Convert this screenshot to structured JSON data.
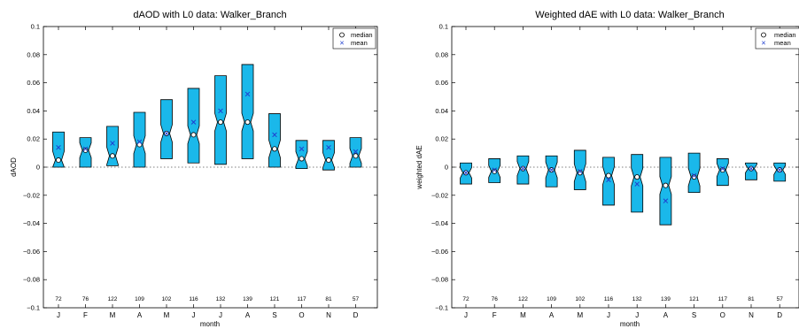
{
  "chart_data": [
    {
      "type": "box",
      "title": "dAOD with L0 data: Walker_Branch",
      "xlabel": "month",
      "ylabel": "dAOD",
      "ylim": [
        -0.1,
        0.1
      ],
      "yticks": [
        -0.1,
        -0.08,
        -0.06,
        -0.04,
        -0.02,
        0,
        0.02,
        0.04,
        0.06,
        0.08,
        0.1
      ],
      "ytick_labels": [
        "−0.1",
        "−0.08",
        "−0.06",
        "−0.04",
        "−0.02",
        "0",
        "0.02",
        "0.04",
        "0.06",
        "0.08",
        "0.1"
      ],
      "categories": [
        "J",
        "F",
        "M",
        "A",
        "M",
        "J",
        "J",
        "A",
        "S",
        "O",
        "N",
        "D"
      ],
      "counts": [
        "72",
        "76",
        "122",
        "109",
        "102",
        "116",
        "132",
        "139",
        "121",
        "117",
        "81",
        "57"
      ],
      "legend": [
        "median",
        "mean"
      ],
      "legend_position": "top-right",
      "box_color": "#1ab8ea",
      "mean_color": "#1f3fd0",
      "boxes": [
        {
          "q1": 0.0,
          "median": 0.005,
          "q3": 0.025,
          "mean": 0.014
        },
        {
          "q1": 0.0,
          "median": 0.012,
          "q3": 0.021,
          "mean": 0.013
        },
        {
          "q1": 0.001,
          "median": 0.008,
          "q3": 0.029,
          "mean": 0.017
        },
        {
          "q1": 0.0,
          "median": 0.016,
          "q3": 0.039,
          "mean": 0.018
        },
        {
          "q1": 0.006,
          "median": 0.024,
          "q3": 0.048,
          "mean": 0.024
        },
        {
          "q1": 0.003,
          "median": 0.023,
          "q3": 0.056,
          "mean": 0.032
        },
        {
          "q1": 0.002,
          "median": 0.032,
          "q3": 0.065,
          "mean": 0.04
        },
        {
          "q1": 0.006,
          "median": 0.032,
          "q3": 0.073,
          "mean": 0.052
        },
        {
          "q1": 0.0,
          "median": 0.013,
          "q3": 0.038,
          "mean": 0.023
        },
        {
          "q1": -0.001,
          "median": 0.006,
          "q3": 0.019,
          "mean": 0.013
        },
        {
          "q1": -0.002,
          "median": 0.005,
          "q3": 0.019,
          "mean": 0.014
        },
        {
          "q1": 0.0,
          "median": 0.008,
          "q3": 0.021,
          "mean": 0.011
        }
      ]
    },
    {
      "type": "box",
      "title": "Weighted dAE with L0 data: Walker_Branch",
      "xlabel": "month",
      "ylabel": "weighted dAE",
      "ylim": [
        -0.1,
        0.1
      ],
      "yticks": [
        -0.1,
        -0.08,
        -0.06,
        -0.04,
        -0.02,
        0,
        0.02,
        0.04,
        0.06,
        0.08,
        0.1
      ],
      "ytick_labels": [
        "−0.1",
        "−0.08",
        "−0.06",
        "−0.04",
        "−0.02",
        "0",
        "0.02",
        "0.04",
        "0.06",
        "0.08",
        "0.1"
      ],
      "categories": [
        "J",
        "F",
        "M",
        "A",
        "M",
        "J",
        "J",
        "A",
        "S",
        "O",
        "N",
        "D"
      ],
      "counts": [
        "72",
        "76",
        "122",
        "109",
        "102",
        "116",
        "132",
        "139",
        "121",
        "117",
        "81",
        "57"
      ],
      "legend": [
        "median",
        "mean"
      ],
      "legend_position": "top-right",
      "box_color": "#1ab8ea",
      "mean_color": "#1f3fd0",
      "boxes": [
        {
          "q1": -0.012,
          "median": -0.004,
          "q3": 0.003,
          "mean": -0.004
        },
        {
          "q1": -0.011,
          "median": -0.003,
          "q3": 0.006,
          "mean": -0.002
        },
        {
          "q1": -0.012,
          "median": -0.001,
          "q3": 0.008,
          "mean": -0.001
        },
        {
          "q1": -0.014,
          "median": -0.002,
          "q3": 0.008,
          "mean": -0.002
        },
        {
          "q1": -0.016,
          "median": -0.004,
          "q3": 0.012,
          "mean": -0.003
        },
        {
          "q1": -0.027,
          "median": -0.006,
          "q3": 0.007,
          "mean": -0.009
        },
        {
          "q1": -0.032,
          "median": -0.007,
          "q3": 0.009,
          "mean": -0.012
        },
        {
          "q1": -0.041,
          "median": -0.013,
          "q3": 0.007,
          "mean": -0.024
        },
        {
          "q1": -0.018,
          "median": -0.007,
          "q3": 0.01,
          "mean": -0.006
        },
        {
          "q1": -0.013,
          "median": -0.002,
          "q3": 0.006,
          "mean": -0.001
        },
        {
          "q1": -0.009,
          "median": -0.001,
          "q3": 0.003,
          "mean": -0.001
        },
        {
          "q1": -0.01,
          "median": -0.002,
          "q3": 0.003,
          "mean": -0.002
        }
      ]
    }
  ]
}
